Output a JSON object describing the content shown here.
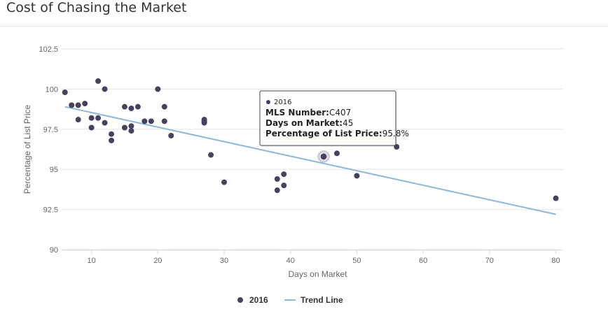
{
  "header": {
    "title": "Cost of Chasing the Market"
  },
  "chart_data": {
    "type": "scatter",
    "title": "Cost of Chasing the Market",
    "xlabel": "Days on Market",
    "ylabel": "Percentage of List Price",
    "xlim": [
      5.5,
      81
    ],
    "ylim": [
      90,
      102.5
    ],
    "xticks": [
      10,
      20,
      30,
      40,
      50,
      60,
      70,
      80
    ],
    "yticks": [
      90,
      92.5,
      95,
      97.5,
      100,
      102.5
    ],
    "ytick_labels": [
      "90",
      "92.5",
      "95",
      "97.5",
      "100",
      "102.5"
    ],
    "grid": "horizontal",
    "legend": "bottom-center",
    "series": [
      {
        "name": "2016",
        "kind": "scatter",
        "color": "#434360",
        "points": [
          [
            6,
            99.8
          ],
          [
            7,
            99.0
          ],
          [
            8,
            99.0
          ],
          [
            8,
            98.1
          ],
          [
            9,
            99.1
          ],
          [
            10,
            98.2
          ],
          [
            10,
            97.6
          ],
          [
            11,
            100.5
          ],
          [
            11,
            98.2
          ],
          [
            12,
            100.0
          ],
          [
            12,
            97.9
          ],
          [
            13,
            97.2
          ],
          [
            13,
            96.8
          ],
          [
            15,
            98.9
          ],
          [
            15,
            97.6
          ],
          [
            16,
            98.8
          ],
          [
            16,
            97.7
          ],
          [
            16,
            97.4
          ],
          [
            17,
            98.9
          ],
          [
            18,
            98.0
          ],
          [
            19,
            98.0
          ],
          [
            20,
            100.0
          ],
          [
            21,
            98.9
          ],
          [
            21,
            98.0
          ],
          [
            22,
            97.1
          ],
          [
            27,
            98.1
          ],
          [
            27,
            98.0
          ],
          [
            27,
            97.9
          ],
          [
            28,
            95.9
          ],
          [
            30,
            94.2
          ],
          [
            38,
            94.4
          ],
          [
            38,
            93.7
          ],
          [
            39,
            94.7
          ],
          [
            39,
            94.0
          ],
          [
            45,
            95.8
          ],
          [
            47,
            96.0
          ],
          [
            50,
            94.6
          ],
          [
            56,
            96.4
          ],
          [
            80,
            93.2
          ]
        ]
      },
      {
        "name": "Trend Line",
        "kind": "line",
        "color": "#8db8d9",
        "points": [
          [
            6,
            98.9
          ],
          [
            80,
            92.2
          ]
        ]
      }
    ],
    "tooltip": {
      "series_name": "2016",
      "point": [
        45,
        95.8
      ],
      "lines": [
        {
          "label": "MLS Number:",
          "value": "C407"
        },
        {
          "label": "Days on Market:",
          "value": "45"
        },
        {
          "label": "Percentage of List Price:",
          "value": "95.8%"
        }
      ]
    }
  }
}
